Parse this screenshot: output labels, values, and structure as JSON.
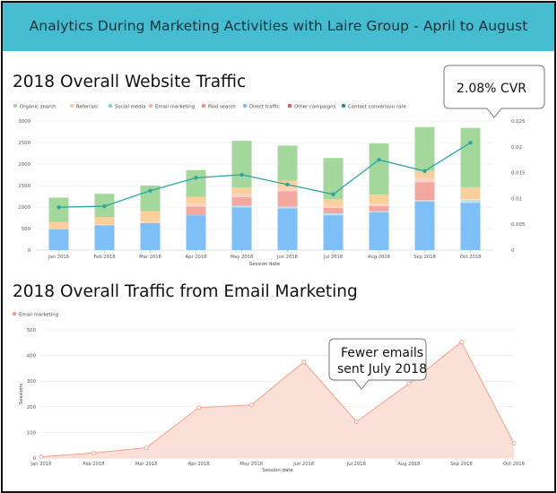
{
  "header": {
    "title": "Analytics During Marketing Activities with Laire Group - April to August"
  },
  "chart_data": [
    {
      "type": "bar",
      "title": "2018 Overall Website Traffic",
      "stacked": true,
      "xlabel": "Session date",
      "ylabel": "",
      "ylim": [
        0,
        3000
      ],
      "y2lim": [
        0,
        0.025
      ],
      "yticks": [
        "0",
        "500",
        "1000",
        "1500",
        "2000",
        "2500",
        "3000"
      ],
      "y2ticks": [
        "0",
        "0.005",
        "0.01",
        "0.015",
        "0.02",
        "0.025"
      ],
      "legend_position": "top",
      "categories": [
        "Jan 2018",
        "Feb 2018",
        "Mar 2018",
        "Apr 2018",
        "May 2018",
        "Jun 2018",
        "Jul 2018",
        "Aug 2018",
        "Sep 2018",
        "Oct 2018"
      ],
      "series": [
        {
          "name": "Direct traffic",
          "color": "#7fbff7",
          "values": [
            480,
            580,
            630,
            810,
            990,
            970,
            810,
            880,
            1130,
            1100
          ]
        },
        {
          "name": "Other campaigns",
          "color": "#b9e3f0",
          "values": [
            0,
            0,
            0,
            0,
            0,
            0,
            0,
            0,
            0,
            0
          ]
        },
        {
          "name": "Social media",
          "color": "#b9e3f0",
          "values": [
            0,
            0,
            0,
            0,
            40,
            40,
            40,
            20,
            30,
            70
          ]
        },
        {
          "name": "Paid search",
          "color": "#f2a79f",
          "values": [
            0,
            0,
            0,
            200,
            200,
            360,
            130,
            120,
            420,
            0
          ]
        },
        {
          "name": "Email marketing",
          "color": "#fbd4c6",
          "values": [
            0,
            20,
            30,
            70,
            70,
            70,
            50,
            60,
            100,
            10
          ]
        },
        {
          "name": "Referrals",
          "color": "#fbcf9b",
          "values": [
            170,
            170,
            240,
            160,
            150,
            170,
            150,
            210,
            160,
            280
          ]
        },
        {
          "name": "Organic search",
          "color": "#a4d79c",
          "values": [
            570,
            540,
            600,
            620,
            1090,
            820,
            960,
            1190,
            1020,
            1380
          ]
        }
      ],
      "line": {
        "name": "Contact conversion rate",
        "color": "#2ba7a3",
        "axis": "right",
        "values": [
          0.0083,
          0.0085,
          0.0115,
          0.014,
          0.0146,
          0.0127,
          0.0108,
          0.0175,
          0.0153,
          0.0208
        ]
      },
      "legend": [
        {
          "name": "Organic search",
          "color": "#a4d79c"
        },
        {
          "name": "Referrals",
          "color": "#fbcf9b"
        },
        {
          "name": "Social media",
          "color": "#7ad2e2"
        },
        {
          "name": "Email marketing",
          "color": "#f9b69e"
        },
        {
          "name": "Paid search",
          "color": "#f28e86"
        },
        {
          "name": "Direct traffic",
          "color": "#7fbff7"
        },
        {
          "name": "Other campaigns",
          "color": "#e05a5a"
        },
        {
          "name": "Contact conversion rate",
          "color": "#2a8f9c"
        }
      ],
      "annotation": {
        "text": "2.08% CVR",
        "category": "Oct 2018"
      }
    },
    {
      "type": "area",
      "title": "2018 Overall Traffic from Email Marketing",
      "xlabel": "Session date",
      "ylabel": "Sessions",
      "ylim": [
        0,
        500
      ],
      "yticks": [
        "0",
        "100",
        "200",
        "300",
        "400",
        "500"
      ],
      "legend_position": "top-left",
      "categories": [
        "Jan 2018",
        "Feb 2018",
        "Mar 2018",
        "Apr 2018",
        "May 2018",
        "Jun 2018",
        "Jul 2018",
        "Aug 2018",
        "Sep 2018",
        "Oct 2018"
      ],
      "series": [
        {
          "name": "Email marketing",
          "color": "#f2a08b",
          "values": [
            5,
            20,
            40,
            197,
            207,
            375,
            142,
            290,
            453,
            57
          ]
        }
      ],
      "annotation": {
        "text_line1": "Fewer emails",
        "text_line2": "sent July 2018",
        "category": "Jul 2018"
      }
    }
  ]
}
